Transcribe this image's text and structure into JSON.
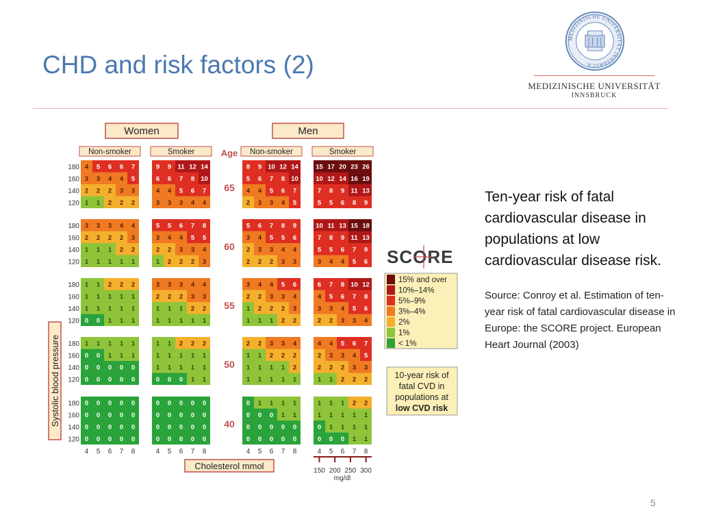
{
  "slide": {
    "title": "CHD and risk factors (2)",
    "page_number": "5"
  },
  "logo": {
    "name": "MEDIZINISCHE UNIVERSITÄT",
    "city": "INNSBRUCK",
    "seal_text": "MEDIZINISCHE UNIVERSITÄT INNSBRUCK"
  },
  "description": {
    "main": "Ten-year risk of fatal cardiovascular disease in populations at low cardiovascular disease risk.",
    "source": "Source: Conroy et al. Estimation of ten-year risk of fatal cardiovascular disease in Europe: the SCORE project. European Heart Journal (2003)"
  },
  "chart": {
    "sex_labels": [
      "Women",
      "Men"
    ],
    "smoking_labels": [
      "Non-smoker",
      "Smoker",
      "Non-smoker",
      "Smoker"
    ],
    "age_header": "Age",
    "y_axis_label": "Systolic blood pressure",
    "x_axis_label": "Cholesterol mmol",
    "sbp_labels": [
      "180",
      "160",
      "140",
      "120"
    ],
    "chol_labels": [
      "4",
      "5",
      "6",
      "7",
      "8"
    ],
    "mgdl_ticks": [
      "150",
      "200",
      "250",
      "300"
    ],
    "mgdl_unit": "mg/dl",
    "ages": [
      "65",
      "60",
      "55",
      "50",
      "40"
    ],
    "score_logo": "SCORE",
    "legend": [
      {
        "label": "15% and over",
        "color": "#6b0d0d"
      },
      {
        "label": "10%–14%",
        "color": "#b01818"
      },
      {
        "label": "5%–9%",
        "color": "#de2f22"
      },
      {
        "label": "3%–4%",
        "color": "#ef7a22"
      },
      {
        "label": "2%",
        "color": "#f4b02d"
      },
      {
        "label": "1%",
        "color": "#8fc43a"
      },
      {
        "label": "< 1%",
        "color": "#2aa33a"
      }
    ],
    "caption": "10-year risk of fatal CVD in populations at low CVD risk",
    "values": [
      [
        [
          [
            4,
            5,
            6,
            6,
            7
          ],
          [
            3,
            3,
            4,
            4,
            5
          ],
          [
            2,
            2,
            2,
            3,
            3
          ],
          [
            1,
            1,
            2,
            2,
            2
          ]
        ],
        [
          [
            9,
            9,
            11,
            12,
            14
          ],
          [
            6,
            6,
            7,
            8,
            10
          ],
          [
            4,
            4,
            5,
            6,
            7
          ],
          [
            3,
            3,
            3,
            4,
            4
          ]
        ],
        [
          [
            8,
            9,
            10,
            12,
            14
          ],
          [
            5,
            6,
            7,
            8,
            10
          ],
          [
            4,
            4,
            5,
            6,
            7
          ],
          [
            2,
            3,
            3,
            4,
            5
          ]
        ],
        [
          [
            15,
            17,
            20,
            23,
            26
          ],
          [
            10,
            12,
            14,
            16,
            19
          ],
          [
            7,
            8,
            9,
            11,
            13
          ],
          [
            5,
            5,
            6,
            8,
            9
          ]
        ]
      ],
      [
        [
          [
            3,
            3,
            3,
            4,
            4
          ],
          [
            2,
            2,
            2,
            2,
            3
          ],
          [
            1,
            1,
            1,
            2,
            2
          ],
          [
            1,
            1,
            1,
            1,
            1
          ]
        ],
        [
          [
            5,
            5,
            6,
            7,
            8
          ],
          [
            3,
            4,
            4,
            5,
            5
          ],
          [
            2,
            2,
            3,
            3,
            4
          ],
          [
            1,
            2,
            2,
            2,
            3
          ]
        ],
        [
          [
            5,
            6,
            7,
            8,
            9
          ],
          [
            3,
            4,
            5,
            5,
            6
          ],
          [
            2,
            3,
            3,
            4,
            4
          ],
          [
            2,
            2,
            2,
            3,
            3
          ]
        ],
        [
          [
            10,
            11,
            13,
            15,
            18
          ],
          [
            7,
            8,
            9,
            11,
            13
          ],
          [
            5,
            5,
            6,
            7,
            9
          ],
          [
            3,
            4,
            4,
            5,
            6
          ]
        ]
      ],
      [
        [
          [
            1,
            1,
            2,
            2,
            2
          ],
          [
            1,
            1,
            1,
            1,
            1
          ],
          [
            1,
            1,
            1,
            1,
            1
          ],
          [
            0,
            0,
            1,
            1,
            1
          ]
        ],
        [
          [
            3,
            3,
            3,
            4,
            4
          ],
          [
            2,
            2,
            2,
            3,
            3
          ],
          [
            1,
            1,
            1,
            2,
            2
          ],
          [
            1,
            1,
            1,
            1,
            1
          ]
        ],
        [
          [
            3,
            4,
            4,
            5,
            6
          ],
          [
            2,
            2,
            3,
            3,
            4
          ],
          [
            1,
            2,
            2,
            2,
            3
          ],
          [
            1,
            1,
            1,
            2,
            2
          ]
        ],
        [
          [
            6,
            7,
            8,
            10,
            12
          ],
          [
            4,
            5,
            6,
            7,
            8
          ],
          [
            3,
            3,
            4,
            5,
            6
          ],
          [
            2,
            2,
            3,
            3,
            4
          ]
        ]
      ],
      [
        [
          [
            1,
            1,
            1,
            1,
            1
          ],
          [
            0,
            0,
            1,
            1,
            1
          ],
          [
            0,
            0,
            0,
            0,
            0
          ],
          [
            0,
            0,
            0,
            0,
            0
          ]
        ],
        [
          [
            1,
            1,
            2,
            2,
            2
          ],
          [
            1,
            1,
            1,
            1,
            1
          ],
          [
            1,
            1,
            1,
            1,
            1
          ],
          [
            0,
            0,
            0,
            1,
            1
          ]
        ],
        [
          [
            2,
            2,
            3,
            3,
            4
          ],
          [
            1,
            1,
            2,
            2,
            2
          ],
          [
            1,
            1,
            1,
            1,
            2
          ],
          [
            1,
            1,
            1,
            1,
            1
          ]
        ],
        [
          [
            4,
            4,
            5,
            6,
            7
          ],
          [
            2,
            3,
            3,
            4,
            5
          ],
          [
            2,
            2,
            2,
            3,
            3
          ],
          [
            1,
            1,
            2,
            2,
            2
          ]
        ]
      ],
      [
        [
          [
            0,
            0,
            0,
            0,
            0
          ],
          [
            0,
            0,
            0,
            0,
            0
          ],
          [
            0,
            0,
            0,
            0,
            0
          ],
          [
            0,
            0,
            0,
            0,
            0
          ]
        ],
        [
          [
            0,
            0,
            0,
            0,
            0
          ],
          [
            0,
            0,
            0,
            0,
            0
          ],
          [
            0,
            0,
            0,
            0,
            0
          ],
          [
            0,
            0,
            0,
            0,
            0
          ]
        ],
        [
          [
            0,
            1,
            1,
            1,
            1
          ],
          [
            0,
            0,
            0,
            1,
            1
          ],
          [
            0,
            0,
            0,
            0,
            0
          ],
          [
            0,
            0,
            0,
            0,
            0
          ]
        ],
        [
          [
            1,
            1,
            1,
            2,
            2
          ],
          [
            1,
            1,
            1,
            1,
            1
          ],
          [
            0,
            1,
            1,
            1,
            1
          ],
          [
            0,
            0,
            0,
            1,
            1
          ]
        ]
      ]
    ]
  }
}
